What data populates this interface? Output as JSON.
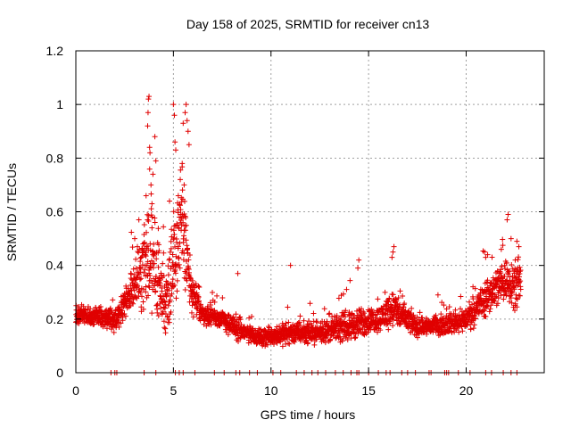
{
  "chart_data": {
    "type": "scatter",
    "title": "Day 158 of 2025, SRMTID for receiver cn13",
    "xlabel": "GPS time / hours",
    "ylabel": "SRMTID / TECUs",
    "xlim": [
      0,
      24
    ],
    "ylim": [
      0,
      1.2
    ],
    "x_ticks": [
      0,
      5,
      10,
      15,
      20
    ],
    "x_tick_labels": [
      "0",
      "5",
      "10",
      "15",
      "20"
    ],
    "y_ticks": [
      0,
      0.2,
      0.4,
      0.6,
      0.8,
      1,
      1.2
    ],
    "y_tick_labels": [
      "0",
      "0.2",
      "0.4",
      "0.6",
      "0.8",
      "1",
      "1.2"
    ],
    "grid": true,
    "marker": "+",
    "color": "#e00000",
    "profile_note": "approximate envelope of the dense point cloud (hours, TECU)",
    "profile": [
      {
        "t": 0.0,
        "base": 0.22,
        "spread": 0.05
      },
      {
        "t": 1.0,
        "base": 0.21,
        "spread": 0.05
      },
      {
        "t": 2.0,
        "base": 0.2,
        "spread": 0.06
      },
      {
        "t": 2.8,
        "base": 0.3,
        "spread": 0.1
      },
      {
        "t": 3.3,
        "base": 0.38,
        "spread": 0.18
      },
      {
        "t": 3.7,
        "base": 0.45,
        "spread": 0.3
      },
      {
        "t": 4.2,
        "base": 0.35,
        "spread": 0.22
      },
      {
        "t": 4.6,
        "base": 0.25,
        "spread": 0.15
      },
      {
        "t": 5.0,
        "base": 0.45,
        "spread": 0.3
      },
      {
        "t": 5.5,
        "base": 0.55,
        "spread": 0.3
      },
      {
        "t": 5.9,
        "base": 0.3,
        "spread": 0.12
      },
      {
        "t": 6.5,
        "base": 0.22,
        "spread": 0.05
      },
      {
        "t": 7.5,
        "base": 0.2,
        "spread": 0.05
      },
      {
        "t": 8.3,
        "base": 0.16,
        "spread": 0.06
      },
      {
        "t": 9.5,
        "base": 0.13,
        "spread": 0.04
      },
      {
        "t": 11.0,
        "base": 0.15,
        "spread": 0.06
      },
      {
        "t": 12.5,
        "base": 0.15,
        "spread": 0.05
      },
      {
        "t": 14.3,
        "base": 0.18,
        "spread": 0.08
      },
      {
        "t": 15.5,
        "base": 0.2,
        "spread": 0.06
      },
      {
        "t": 16.2,
        "base": 0.24,
        "spread": 0.1
      },
      {
        "t": 17.5,
        "base": 0.17,
        "spread": 0.05
      },
      {
        "t": 19.0,
        "base": 0.18,
        "spread": 0.05
      },
      {
        "t": 20.0,
        "base": 0.2,
        "spread": 0.06
      },
      {
        "t": 21.0,
        "base": 0.28,
        "spread": 0.1
      },
      {
        "t": 22.0,
        "base": 0.35,
        "spread": 0.12
      },
      {
        "t": 22.8,
        "base": 0.32,
        "spread": 0.12
      }
    ],
    "peaks": [
      {
        "x": 3.75,
        "y": 1.03
      },
      {
        "x": 3.72,
        "y": 1.02
      },
      {
        "x": 3.7,
        "y": 0.97
      },
      {
        "x": 3.68,
        "y": 0.92
      },
      {
        "x": 3.78,
        "y": 0.84
      },
      {
        "x": 3.8,
        "y": 0.82
      },
      {
        "x": 3.6,
        "y": 0.66
      },
      {
        "x": 3.95,
        "y": 0.74
      },
      {
        "x": 4.05,
        "y": 0.88
      },
      {
        "x": 4.1,
        "y": 0.79
      },
      {
        "x": 3.85,
        "y": 0.7
      },
      {
        "x": 3.9,
        "y": 0.63
      },
      {
        "x": 5.0,
        "y": 1.0
      },
      {
        "x": 5.05,
        "y": 0.96
      },
      {
        "x": 5.65,
        "y": 1.0
      },
      {
        "x": 5.6,
        "y": 0.97
      },
      {
        "x": 5.5,
        "y": 0.93
      },
      {
        "x": 5.7,
        "y": 0.94
      },
      {
        "x": 5.75,
        "y": 0.9
      },
      {
        "x": 5.08,
        "y": 0.86
      },
      {
        "x": 5.12,
        "y": 0.83
      },
      {
        "x": 5.8,
        "y": 0.85
      },
      {
        "x": 5.45,
        "y": 0.78
      },
      {
        "x": 5.35,
        "y": 0.72
      },
      {
        "x": 5.55,
        "y": 0.7
      },
      {
        "x": 4.8,
        "y": 0.64
      },
      {
        "x": 5.25,
        "y": 0.66
      },
      {
        "x": 8.3,
        "y": 0.37
      },
      {
        "x": 11.0,
        "y": 0.4
      },
      {
        "x": 14.5,
        "y": 0.42
      },
      {
        "x": 14.45,
        "y": 0.39
      },
      {
        "x": 16.3,
        "y": 0.47
      },
      {
        "x": 16.25,
        "y": 0.45
      },
      {
        "x": 16.2,
        "y": 0.43
      },
      {
        "x": 22.15,
        "y": 0.59
      },
      {
        "x": 22.1,
        "y": 0.57
      },
      {
        "x": 22.3,
        "y": 0.5
      },
      {
        "x": 22.6,
        "y": 0.49
      },
      {
        "x": 22.7,
        "y": 0.47
      },
      {
        "x": 21.0,
        "y": 0.43
      },
      {
        "x": 21.1,
        "y": 0.44
      },
      {
        "x": 21.8,
        "y": 0.46
      }
    ],
    "zero_points_x": [
      1.8,
      2.0,
      2.1,
      3.5,
      4.1,
      5.1,
      5.3,
      5.5,
      6.1,
      7.1,
      7.6,
      8.2,
      8.4,
      8.9,
      9.3,
      10.1,
      10.5,
      11.3,
      11.7,
      12.1,
      12.4,
      12.8,
      13.3,
      13.7,
      14.1,
      14.4,
      14.5,
      15.0,
      15.5,
      15.9,
      16.1,
      16.7,
      17.0,
      17.4,
      18.1,
      18.2,
      18.9,
      19.0,
      19.1,
      19.6,
      20.2,
      21.0,
      21.3,
      21.9,
      22.3,
      22.6
    ]
  }
}
